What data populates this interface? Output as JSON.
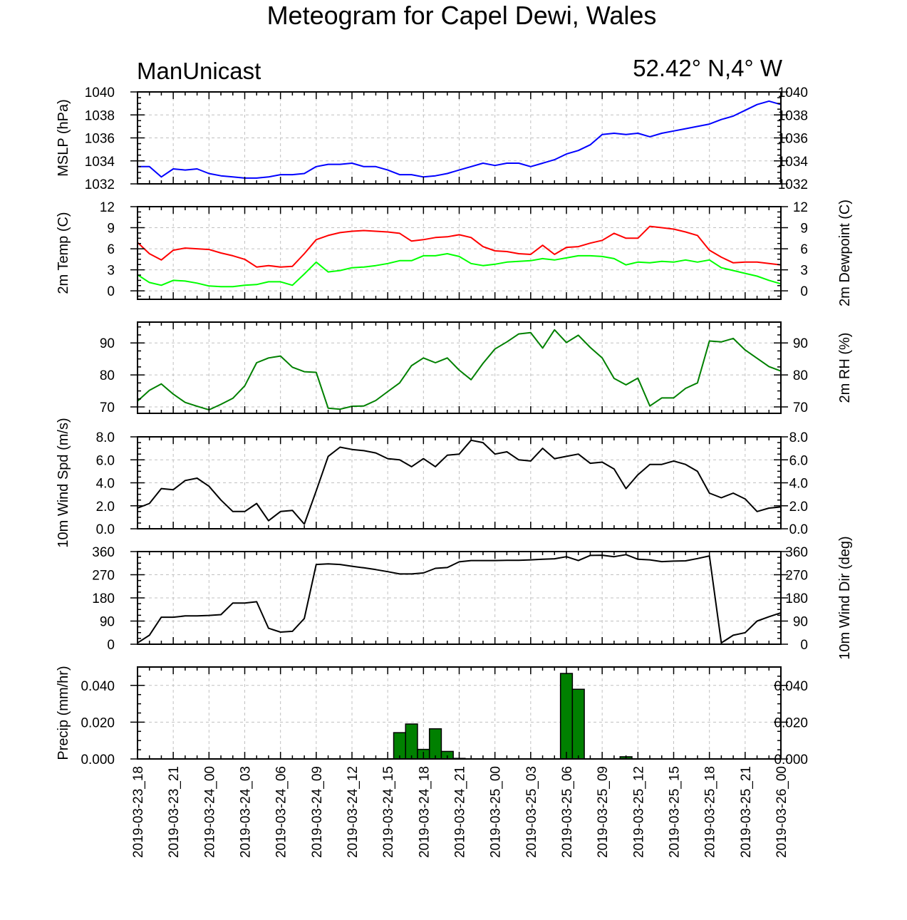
{
  "header": {
    "title": "Meteogram for Capel Dewi, Wales",
    "left_label": "ManUnicast",
    "right_label": "52.42° N,4° W"
  },
  "chart_data": [
    {
      "type": "line",
      "ylabel": "MSLP (hPa)",
      "ylabel_right": "",
      "ylim": [
        1032,
        1040
      ],
      "yticks": [
        1032,
        1034,
        1036,
        1038,
        1040
      ],
      "ytick_labels": [
        "1032",
        "1034",
        "1036",
        "1038",
        "1040"
      ],
      "series": [
        {
          "color": "#0000ff",
          "values": [
            1033.5,
            1033.5,
            1032.6,
            1033.3,
            1033.2,
            1033.3,
            1032.9,
            1032.7,
            1032.6,
            1032.5,
            1032.5,
            1032.6,
            1032.8,
            1032.8,
            1032.9,
            1033.5,
            1033.7,
            1033.7,
            1033.8,
            1033.5,
            1033.5,
            1033.2,
            1032.8,
            1032.8,
            1032.6,
            1032.7,
            1032.9,
            1033.2,
            1033.5,
            1033.8,
            1033.6,
            1033.8,
            1033.8,
            1033.5,
            1033.8,
            1034.1,
            1034.6,
            1034.9,
            1035.4,
            1036.3,
            1036.4,
            1036.3,
            1036.4,
            1036.1,
            1036.4,
            1036.6,
            1036.8,
            1037.0,
            1037.2,
            1037.6,
            1037.9,
            1038.4,
            1038.9,
            1039.2,
            1038.9
          ]
        }
      ]
    },
    {
      "type": "line",
      "ylabel": "2m Temp (C)",
      "ylabel_right": "2m Dewpoint (C)",
      "ylim": [
        -1.2,
        12
      ],
      "yticks": [
        0,
        3,
        6,
        9,
        12
      ],
      "ytick_labels": [
        "0",
        "3",
        "6",
        "9",
        "12"
      ],
      "series": [
        {
          "color": "#ff0000",
          "values": [
            6.9,
            5.3,
            4.4,
            5.8,
            6.1,
            6.0,
            5.9,
            5.4,
            5.0,
            4.5,
            3.4,
            3.6,
            3.4,
            3.5,
            5.3,
            7.3,
            7.9,
            8.3,
            8.5,
            8.6,
            8.5,
            8.4,
            8.2,
            7.1,
            7.3,
            7.6,
            7.7,
            8.0,
            7.6,
            6.3,
            5.7,
            5.6,
            5.3,
            5.2,
            6.5,
            5.2,
            6.2,
            6.3,
            6.8,
            7.2,
            8.2,
            7.5,
            7.5,
            9.2,
            9.0,
            8.8,
            8.4,
            7.9,
            5.8,
            4.8,
            4.0,
            4.1,
            4.1,
            3.9,
            3.7
          ]
        },
        {
          "color": "#00ff00",
          "values": [
            2.3,
            1.2,
            0.8,
            1.5,
            1.4,
            1.1,
            0.7,
            0.6,
            0.6,
            0.8,
            0.9,
            1.3,
            1.3,
            0.8,
            2.4,
            4.1,
            2.7,
            2.9,
            3.3,
            3.4,
            3.6,
            3.9,
            4.3,
            4.3,
            5.0,
            5.0,
            5.3,
            4.9,
            3.9,
            3.6,
            3.8,
            4.1,
            4.2,
            4.3,
            4.6,
            4.4,
            4.7,
            5.0,
            5.0,
            4.9,
            4.6,
            3.7,
            4.1,
            4.0,
            4.2,
            4.1,
            4.4,
            4.1,
            4.4,
            3.3,
            2.9,
            2.5,
            2.1,
            1.5,
            1.0
          ]
        }
      ]
    },
    {
      "type": "line",
      "ylabel": "",
      "ylabel_right": "2m RH (%)",
      "ylim": [
        68,
        96.5
      ],
      "yticks": [
        70,
        80,
        90
      ],
      "ytick_labels": [
        "70",
        "80",
        "90"
      ],
      "series": [
        {
          "color": "#008000",
          "values": [
            71.8,
            75.2,
            77.2,
            74.0,
            71.4,
            70.2,
            69.1,
            70.8,
            72.7,
            76.6,
            83.8,
            85.3,
            85.9,
            82.4,
            81.0,
            80.8,
            69.6,
            69.3,
            70.2,
            70.3,
            72.0,
            74.8,
            77.5,
            82.9,
            85.3,
            83.8,
            85.3,
            81.5,
            78.5,
            83.6,
            88.1,
            90.3,
            92.8,
            93.2,
            88.4,
            94.1,
            90.1,
            92.4,
            88.6,
            85.3,
            78.9,
            76.9,
            79.0,
            70.3,
            72.8,
            72.8,
            75.8,
            77.5,
            90.6,
            90.3,
            91.4,
            87.8,
            85.2,
            82.6,
            81.2
          ]
        }
      ]
    },
    {
      "type": "line",
      "ylabel": "10m Wind Spd (m/s)",
      "ylabel_right": "",
      "ylim": [
        0,
        8
      ],
      "yticks": [
        0,
        2,
        4,
        6,
        8
      ],
      "ytick_labels": [
        "0.0",
        "2.0",
        "4.0",
        "6.0",
        "8.0"
      ],
      "series": [
        {
          "color": "#000000",
          "values": [
            1.8,
            2.2,
            3.5,
            3.4,
            4.2,
            4.4,
            3.7,
            2.5,
            1.5,
            1.5,
            2.2,
            0.7,
            1.5,
            1.6,
            0.4,
            3.3,
            6.3,
            7.1,
            6.9,
            6.8,
            6.6,
            6.1,
            6.0,
            5.4,
            6.1,
            5.4,
            6.4,
            6.5,
            7.7,
            7.5,
            6.5,
            6.7,
            6.0,
            5.9,
            7.0,
            6.1,
            6.3,
            6.5,
            5.7,
            5.8,
            5.2,
            3.5,
            4.7,
            5.6,
            5.6,
            5.9,
            5.6,
            5.0,
            3.1,
            2.7,
            3.1,
            2.6,
            1.5,
            1.8,
            1.9
          ]
        }
      ]
    },
    {
      "type": "line",
      "ylabel": "",
      "ylabel_right": "10m Wind Dir (deg)",
      "ylim": [
        0,
        360
      ],
      "yticks": [
        0,
        90,
        180,
        270,
        360
      ],
      "ytick_labels": [
        "0",
        "90",
        "180",
        "270",
        "360"
      ],
      "series": [
        {
          "color": "#000000",
          "values": [
            5,
            35,
            105,
            105,
            110,
            110,
            112,
            115,
            160,
            160,
            165,
            62,
            47,
            50,
            100,
            310,
            312,
            310,
            303,
            297,
            290,
            282,
            273,
            273,
            277,
            295,
            298,
            320,
            325,
            325,
            325,
            326,
            326,
            328,
            330,
            332,
            340,
            325,
            345,
            346,
            340,
            348,
            330,
            328,
            321,
            323,
            324,
            333,
            343,
            5,
            35,
            45,
            90,
            107,
            122
          ]
        }
      ]
    },
    {
      "type": "bar",
      "ylabel": "Precip (mm/hr)",
      "ylabel_right": "",
      "ylim": [
        0,
        0.05
      ],
      "yticks": [
        0,
        0.02,
        0.04
      ],
      "ytick_labels": [
        "0.000",
        "0.020",
        "0.040"
      ],
      "series": [
        {
          "color": "#008000",
          "values": [
            0,
            0,
            0,
            0,
            0,
            0,
            0,
            0,
            0,
            0,
            0,
            0,
            0,
            0,
            0,
            0,
            0,
            0,
            0,
            0,
            0,
            0,
            0.0143,
            0.019,
            0.0052,
            0.0164,
            0.0041,
            0.0003,
            0,
            0,
            0,
            0,
            0,
            0,
            0,
            0,
            0.0465,
            0.0379,
            0,
            0,
            0,
            0.0012,
            0,
            0,
            0,
            0,
            0,
            0,
            0,
            0,
            0,
            0,
            0,
            0,
            0
          ]
        }
      ]
    }
  ],
  "x_axis": {
    "tick_labels": [
      "2019-03-23_18",
      "2019-03-23_21",
      "2019-03-24_00",
      "2019-03-24_03",
      "2019-03-24_06",
      "2019-03-24_09",
      "2019-03-24_12",
      "2019-03-24_15",
      "2019-03-24_18",
      "2019-03-24_21",
      "2019-03-25_00",
      "2019-03-25_03",
      "2019-03-25_06",
      "2019-03-25_09",
      "2019-03-25_12",
      "2019-03-25_15",
      "2019-03-25_18",
      "2019-03-25_21",
      "2019-03-26_00"
    ],
    "hours_per_label": 3,
    "hours_per_point": 1
  }
}
